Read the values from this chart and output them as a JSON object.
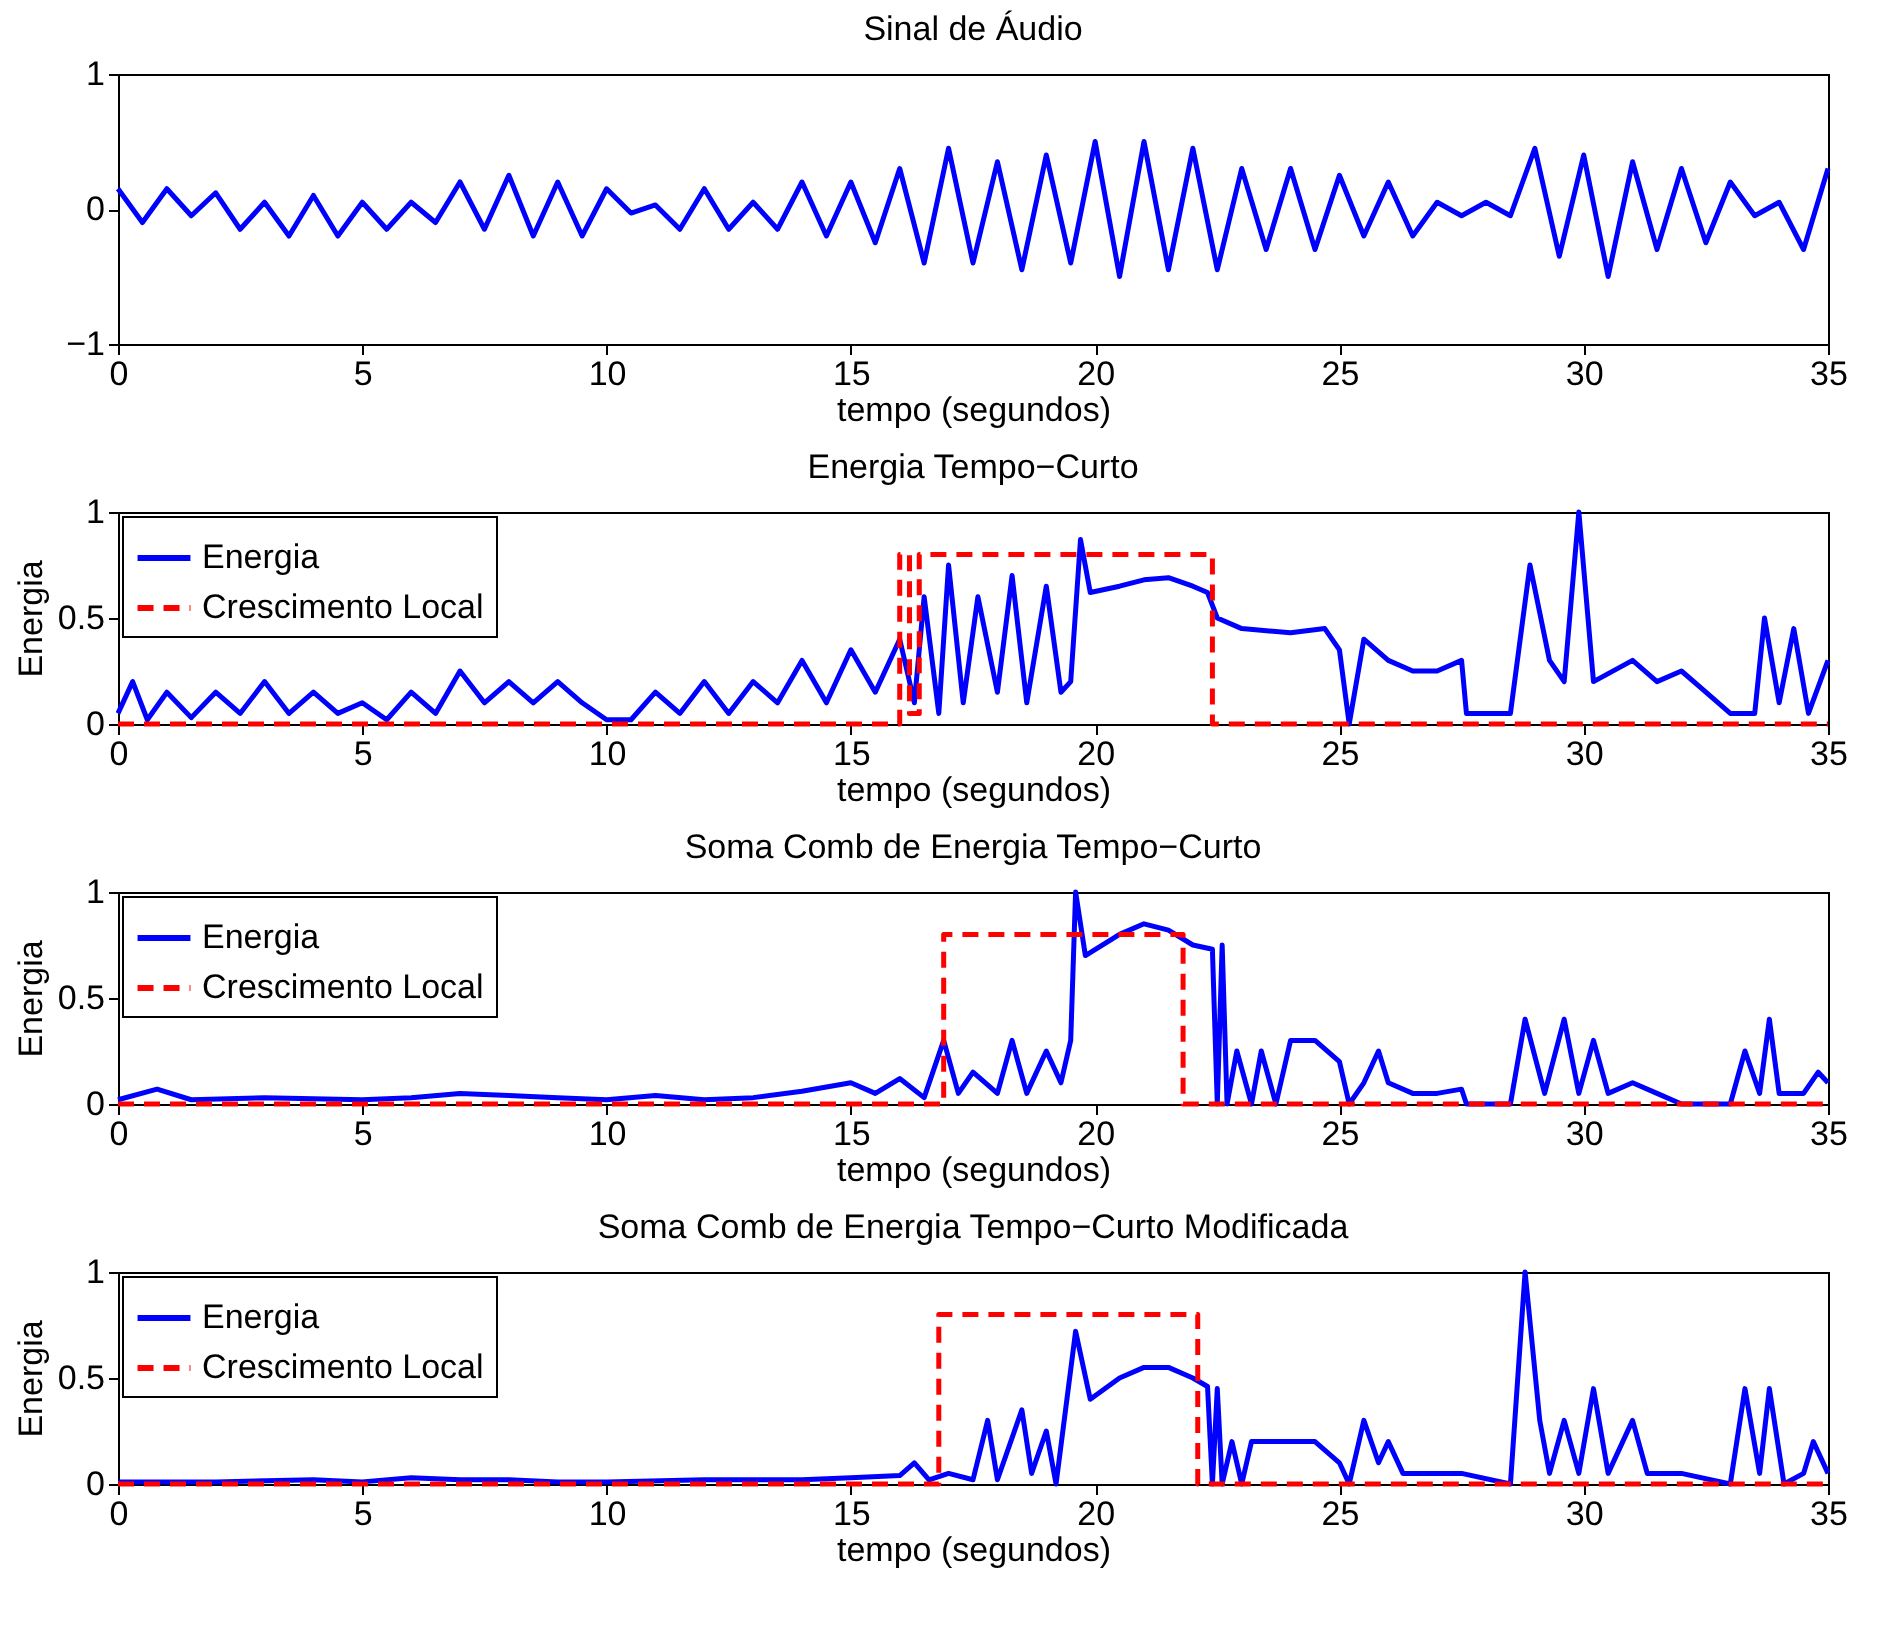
{
  "chart_data": [
    {
      "type": "line",
      "title": "Sinal de Áudio",
      "xlabel": "tempo (segundos)",
      "xlim": [
        0,
        35
      ],
      "xticks": [
        0,
        5,
        10,
        15,
        20,
        25,
        30,
        35
      ],
      "ylim": [
        -1,
        1
      ],
      "yticks": [
        -1,
        0,
        1
      ],
      "series": [
        {
          "color": "#0000ff",
          "line_style": "solid",
          "x": [
            0,
            0.5,
            1,
            1.5,
            2,
            2.5,
            3,
            3.5,
            4,
            4.5,
            5,
            5.5,
            6,
            6.5,
            7,
            7.5,
            8,
            8.5,
            9,
            9.5,
            10,
            10.5,
            11,
            11.5,
            12,
            12.5,
            13,
            13.5,
            14,
            14.5,
            15,
            15.5,
            16,
            16.5,
            17,
            17.5,
            18,
            18.5,
            19,
            19.5,
            20,
            20.5,
            21,
            21.5,
            22,
            22.5,
            23,
            23.5,
            24,
            24.5,
            25,
            25.5,
            26,
            26.5,
            27,
            27.5,
            28,
            28.5,
            29,
            29.5,
            30,
            30.5,
            31,
            31.5,
            32,
            32.5,
            33,
            33.5,
            34,
            34.5,
            35
          ],
          "values": [
            0.15,
            -0.1,
            0.15,
            -0.05,
            0.12,
            -0.15,
            0.05,
            -0.2,
            0.1,
            -0.2,
            0.05,
            -0.15,
            0.05,
            -0.1,
            0.2,
            -0.15,
            0.25,
            -0.2,
            0.2,
            -0.2,
            0.15,
            -0.03,
            0.03,
            -0.15,
            0.15,
            -0.15,
            0.05,
            -0.15,
            0.2,
            -0.2,
            0.2,
            -0.25,
            0.3,
            -0.4,
            0.45,
            -0.4,
            0.35,
            -0.45,
            0.4,
            -0.4,
            0.5,
            -0.5,
            0.5,
            -0.45,
            0.45,
            -0.45,
            0.3,
            -0.3,
            0.3,
            -0.3,
            0.25,
            -0.2,
            0.2,
            -0.2,
            0.05,
            -0.05,
            0.05,
            -0.05,
            0.45,
            -0.35,
            0.4,
            -0.5,
            0.35,
            -0.3,
            0.3,
            -0.25,
            0.2,
            -0.05,
            0.05,
            -0.3,
            0.3
          ]
        }
      ]
    },
    {
      "type": "line",
      "title": "Energia Tempo−Curto",
      "xlabel": "tempo (segundos)",
      "ylabel": "Energia",
      "xlim": [
        0,
        35
      ],
      "xticks": [
        0,
        5,
        10,
        15,
        20,
        25,
        30,
        35
      ],
      "ylim": [
        0,
        1
      ],
      "yticks": [
        0,
        0.5,
        1
      ],
      "legend": "top left",
      "series": [
        {
          "name": "Energia",
          "color": "#0000ff",
          "line_style": "solid",
          "x": [
            0,
            0.3,
            0.6,
            1,
            1.5,
            2,
            2.5,
            3,
            3.5,
            4,
            4.5,
            5,
            5.5,
            6,
            6.5,
            7,
            7.5,
            8,
            8.5,
            9,
            9.5,
            10,
            10.5,
            11,
            11.5,
            12,
            12.5,
            13,
            13.5,
            14,
            14.5,
            15,
            15.5,
            16,
            16.3,
            16.5,
            16.8,
            17,
            17.3,
            17.6,
            18,
            18.3,
            18.6,
            19,
            19.3,
            19.5,
            19.7,
            19.9,
            20.5,
            21,
            21.5,
            22,
            22.3,
            22.5,
            23,
            24,
            24.7,
            25,
            25.2,
            25.5,
            26,
            26.5,
            27,
            27.5,
            27.6,
            28.5,
            28.9,
            29.3,
            29.6,
            29.9,
            30.2,
            31,
            31.5,
            32,
            32.5,
            33,
            33.5,
            33.7,
            34,
            34.3,
            34.6,
            35
          ],
          "values": [
            0.05,
            0.2,
            0.02,
            0.15,
            0.03,
            0.15,
            0.05,
            0.2,
            0.05,
            0.15,
            0.05,
            0.1,
            0.02,
            0.15,
            0.05,
            0.25,
            0.1,
            0.2,
            0.1,
            0.2,
            0.1,
            0.02,
            0.02,
            0.15,
            0.05,
            0.2,
            0.05,
            0.2,
            0.1,
            0.3,
            0.1,
            0.35,
            0.15,
            0.4,
            0.1,
            0.6,
            0.05,
            0.75,
            0.1,
            0.6,
            0.15,
            0.7,
            0.1,
            0.65,
            0.15,
            0.2,
            0.87,
            0.62,
            0.65,
            0.68,
            0.69,
            0.65,
            0.62,
            0.5,
            0.45,
            0.43,
            0.45,
            0.35,
            0,
            0.4,
            0.3,
            0.25,
            0.25,
            0.3,
            0.05,
            0.05,
            0.75,
            0.3,
            0.2,
            1.0,
            0.2,
            0.3,
            0.2,
            0.25,
            0.15,
            0.05,
            0.05,
            0.5,
            0.1,
            0.45,
            0.05,
            0.3
          ]
        },
        {
          "name": "Crescimento Local",
          "color": "#ff0000",
          "line_style": "dashed",
          "x": [
            0,
            16,
            16,
            16.2,
            16.2,
            16.4,
            16.4,
            22.4,
            22.4,
            35
          ],
          "values": [
            0,
            0,
            0.8,
            0.8,
            0.05,
            0.05,
            0.8,
            0.8,
            0,
            0
          ]
        }
      ]
    },
    {
      "type": "line",
      "title": "Soma Comb de Energia Tempo−Curto",
      "xlabel": "tempo (segundos)",
      "ylabel": "Energia",
      "xlim": [
        0,
        35
      ],
      "xticks": [
        0,
        5,
        10,
        15,
        20,
        25,
        30,
        35
      ],
      "ylim": [
        0,
        1
      ],
      "yticks": [
        0,
        0.5,
        1
      ],
      "legend": "top left",
      "series": [
        {
          "name": "Energia",
          "color": "#0000ff",
          "line_style": "solid",
          "x": [
            0,
            0.8,
            1.5,
            3,
            5,
            6,
            7,
            8,
            9,
            10,
            11,
            12,
            13,
            14,
            15,
            15.5,
            16,
            16.5,
            16.9,
            17.2,
            17.5,
            18,
            18.3,
            18.6,
            19,
            19.3,
            19.5,
            19.6,
            19.8,
            20.5,
            21,
            21.5,
            22,
            22.4,
            22.5,
            22.6,
            22.7,
            22.9,
            23.2,
            23.4,
            23.7,
            24,
            24.5,
            25,
            25.2,
            25.5,
            25.8,
            26,
            26.5,
            27,
            27.5,
            27.6,
            28.5,
            28.8,
            29.2,
            29.6,
            29.9,
            30.2,
            30.5,
            31,
            31.5,
            32,
            33,
            33.3,
            33.6,
            33.8,
            34,
            34.5,
            34.8,
            35
          ],
          "values": [
            0.02,
            0.07,
            0.02,
            0.03,
            0.02,
            0.03,
            0.05,
            0.04,
            0.03,
            0.02,
            0.04,
            0.02,
            0.03,
            0.06,
            0.1,
            0.05,
            0.12,
            0.03,
            0.3,
            0.05,
            0.15,
            0.05,
            0.3,
            0.05,
            0.25,
            0.1,
            0.3,
            1.0,
            0.7,
            0.8,
            0.85,
            0.82,
            0.75,
            0.73,
            0,
            0.75,
            0,
            0.25,
            0,
            0.25,
            0,
            0.3,
            0.3,
            0.2,
            0,
            0.1,
            0.25,
            0.1,
            0.05,
            0.05,
            0.07,
            0,
            0,
            0.4,
            0.05,
            0.4,
            0.05,
            0.3,
            0.05,
            0.1,
            0.05,
            0,
            0,
            0.25,
            0.05,
            0.4,
            0.05,
            0.05,
            0.15,
            0.1
          ]
        },
        {
          "name": "Crescimento Local",
          "color": "#ff0000",
          "line_style": "dashed",
          "x": [
            0,
            16.9,
            16.9,
            21.8,
            21.8,
            35
          ],
          "values": [
            0,
            0,
            0.8,
            0.8,
            0,
            0
          ]
        }
      ]
    },
    {
      "type": "line",
      "title": "Soma Comb de Energia Tempo−Curto Modificada",
      "xlabel": "tempo (segundos)",
      "ylabel": "Energia",
      "xlim": [
        0,
        35
      ],
      "xticks": [
        0,
        5,
        10,
        15,
        20,
        25,
        30,
        35
      ],
      "ylim": [
        0,
        1
      ],
      "yticks": [
        0,
        0.5,
        1
      ],
      "legend": "top left",
      "series": [
        {
          "name": "Energia",
          "color": "#0000ff",
          "line_style": "solid",
          "x": [
            0,
            2,
            4,
            5,
            6,
            7,
            8,
            9,
            10,
            12,
            14,
            15,
            16,
            16.3,
            16.6,
            17,
            17.5,
            17.8,
            18,
            18.5,
            18.7,
            19,
            19.2,
            19.6,
            19.9,
            20.5,
            21,
            21.5,
            22,
            22.3,
            22.4,
            22.5,
            22.6,
            22.8,
            23,
            23.2,
            24,
            24.5,
            25,
            25.2,
            25.5,
            25.8,
            26,
            26.3,
            27,
            27.5,
            28.5,
            28.8,
            29.1,
            29.3,
            29.6,
            29.9,
            30.2,
            30.5,
            31,
            31.3,
            32,
            33,
            33.3,
            33.6,
            33.8,
            34.1,
            34.5,
            34.7,
            35
          ],
          "values": [
            0.01,
            0.01,
            0.02,
            0.01,
            0.03,
            0.02,
            0.02,
            0.01,
            0.01,
            0.02,
            0.02,
            0.03,
            0.04,
            0.1,
            0.02,
            0.05,
            0.02,
            0.3,
            0.02,
            0.35,
            0.05,
            0.25,
            0,
            0.72,
            0.4,
            0.5,
            0.55,
            0.55,
            0.5,
            0.46,
            0,
            0.45,
            0,
            0.2,
            0,
            0.2,
            0.2,
            0.2,
            0.1,
            0,
            0.3,
            0.1,
            0.2,
            0.05,
            0.05,
            0.05,
            0,
            1.0,
            0.3,
            0.05,
            0.3,
            0.05,
            0.45,
            0.05,
            0.3,
            0.05,
            0.05,
            0,
            0.45,
            0.05,
            0.45,
            0,
            0.05,
            0.2,
            0.05
          ]
        },
        {
          "name": "Crescimento Local",
          "color": "#ff0000",
          "line_style": "dashed",
          "x": [
            0,
            16.8,
            16.8,
            22.1,
            22.1,
            35
          ],
          "values": [
            0,
            0,
            0.8,
            0.8,
            0,
            0
          ]
        }
      ]
    }
  ]
}
